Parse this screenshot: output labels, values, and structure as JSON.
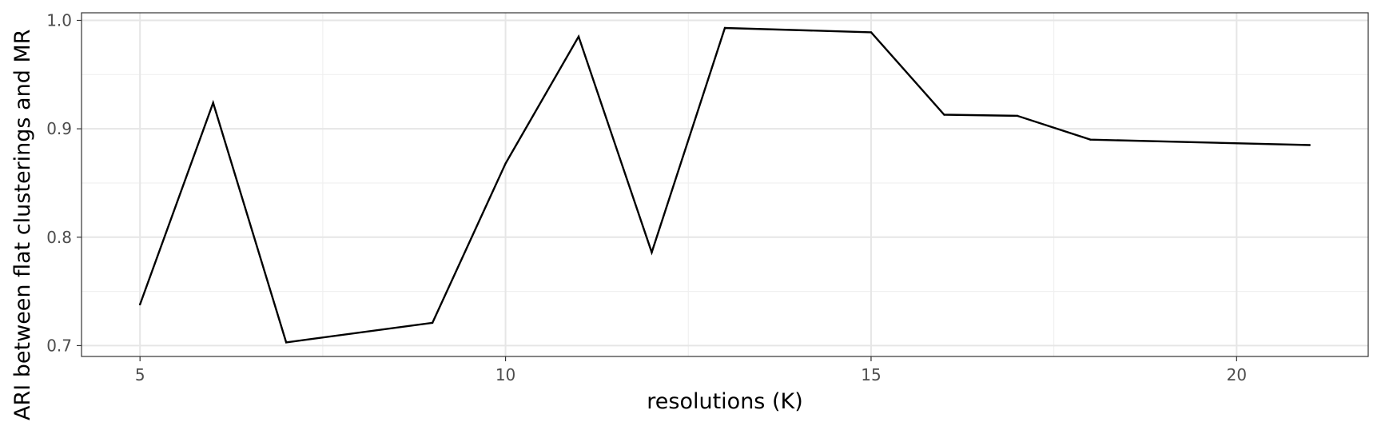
{
  "chart_data": {
    "type": "line",
    "title": "",
    "xlabel": "resolutions (K)",
    "ylabel": "ARI between flat clusterings and MR",
    "xlim": [
      4.2,
      21.8
    ],
    "ylim": [
      0.69,
      1.007
    ],
    "x_ticks": [
      5,
      10,
      15,
      20
    ],
    "x_tick_labels": [
      "5",
      "10",
      "15",
      "20"
    ],
    "y_ticks": [
      0.7,
      0.8,
      0.9,
      1.0
    ],
    "y_tick_labels": [
      "0.7",
      "0.8",
      "0.9",
      "1.0"
    ],
    "grid": true,
    "series": [
      {
        "x": [
          5,
          6,
          7,
          9,
          10,
          11,
          12,
          13,
          15,
          16,
          17,
          18,
          21
        ],
        "y": [
          0.738,
          0.924,
          0.703,
          0.721,
          0.868,
          0.985,
          0.786,
          0.993,
          0.989,
          0.913,
          0.912,
          0.89,
          0.885
        ],
        "color": "#000000"
      }
    ]
  }
}
